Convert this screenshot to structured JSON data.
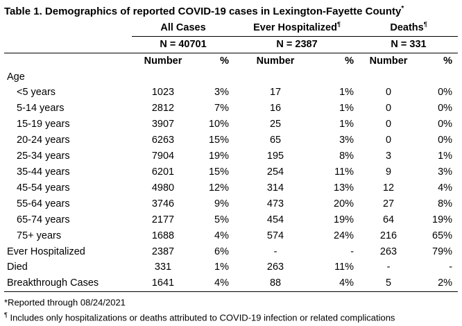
{
  "title": "Table 1. Demographics of reported COVID-19 cases in Lexington-Fayette County",
  "title_mark": "*",
  "groups": [
    {
      "label": "All Cases",
      "mark": "",
      "n": "N = 40701"
    },
    {
      "label": "Ever Hospitalized",
      "mark": "¶",
      "n": "N = 2387"
    },
    {
      "label": "Deaths",
      "mark": "¶",
      "n": "N = 331"
    }
  ],
  "col_number": "Number",
  "col_pct": "%",
  "age_header": "Age",
  "rows": [
    {
      "label": "<5 years",
      "sub": true,
      "v": [
        "1023",
        "3%",
        "17",
        "1%",
        "0",
        "0%"
      ]
    },
    {
      "label": "5-14 years",
      "sub": true,
      "v": [
        "2812",
        "7%",
        "16",
        "1%",
        "0",
        "0%"
      ]
    },
    {
      "label": "15-19 years",
      "sub": true,
      "v": [
        "3907",
        "10%",
        "25",
        "1%",
        "0",
        "0%"
      ]
    },
    {
      "label": "20-24 years",
      "sub": true,
      "v": [
        "6263",
        "15%",
        "65",
        "3%",
        "0",
        "0%"
      ]
    },
    {
      "label": "25-34 years",
      "sub": true,
      "v": [
        "7904",
        "19%",
        "195",
        "8%",
        "3",
        "1%"
      ]
    },
    {
      "label": "35-44 years",
      "sub": true,
      "v": [
        "6201",
        "15%",
        "254",
        "11%",
        "9",
        "3%"
      ]
    },
    {
      "label": "45-54 years",
      "sub": true,
      "v": [
        "4980",
        "12%",
        "314",
        "13%",
        "12",
        "4%"
      ]
    },
    {
      "label": "55-64 years",
      "sub": true,
      "v": [
        "3746",
        "9%",
        "473",
        "20%",
        "27",
        "8%"
      ]
    },
    {
      "label": "65-74 years",
      "sub": true,
      "v": [
        "2177",
        "5%",
        "454",
        "19%",
        "64",
        "19%"
      ]
    },
    {
      "label": "75+ years",
      "sub": true,
      "v": [
        "1688",
        "4%",
        "574",
        "24%",
        "216",
        "65%"
      ]
    },
    {
      "label": "Ever Hospitalized",
      "sub": false,
      "v": [
        "2387",
        "6%",
        "-",
        "-",
        "263",
        "79%"
      ]
    },
    {
      "label": "Died",
      "sub": false,
      "v": [
        "331",
        "1%",
        "263",
        "11%",
        "-",
        "-"
      ]
    },
    {
      "label": "Breakthrough Cases",
      "sub": false,
      "v": [
        "1641",
        "4%",
        "88",
        "4%",
        "5",
        "2%"
      ]
    }
  ],
  "footnotes": [
    {
      "mark": "",
      "text": "*Reported through 08/24/2021"
    },
    {
      "mark": "¶",
      "text": " Includes only hospitalizations or deaths attributed to COVID-19 infection or related complications"
    }
  ]
}
